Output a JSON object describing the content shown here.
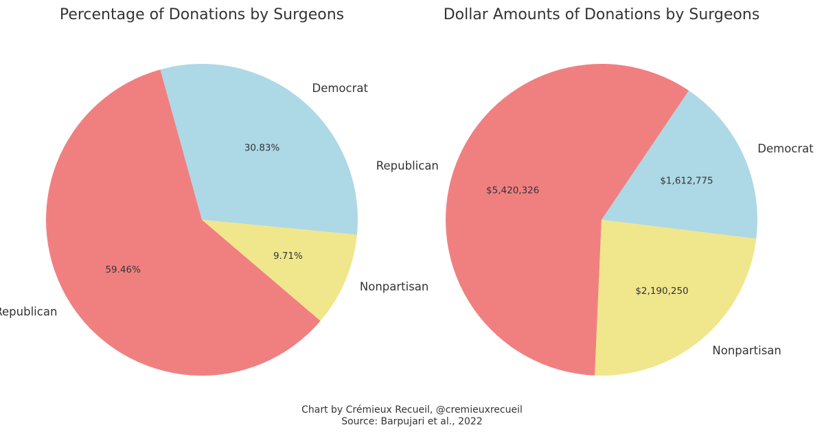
{
  "chart_data": [
    {
      "type": "pie",
      "title": "Percentage of Donations by Surgeons",
      "categories": [
        "Democrat",
        "Republican",
        "Nonpartisan"
      ],
      "values": [
        30.83,
        59.46,
        9.71
      ],
      "value_labels": [
        "30.83%",
        "59.46%",
        "9.71%"
      ],
      "colors": [
        "#add8e6",
        "#f08080",
        "#f0e68c"
      ]
    },
    {
      "type": "pie",
      "title": "Dollar Amounts of Donations by Surgeons",
      "categories": [
        "Democrat",
        "Republican",
        "Nonpartisan"
      ],
      "values": [
        1612775,
        5420326,
        2190250
      ],
      "value_labels": [
        "$1,612,775",
        "$5,420,326",
        "$2,190,250"
      ],
      "colors": [
        "#add8e6",
        "#f08080",
        "#f0e68c"
      ]
    }
  ],
  "footer": {
    "credit": "Chart by Crémieux Recueil, @cremieuxrecueil",
    "source": "Source: Barpujari et al., 2022"
  }
}
